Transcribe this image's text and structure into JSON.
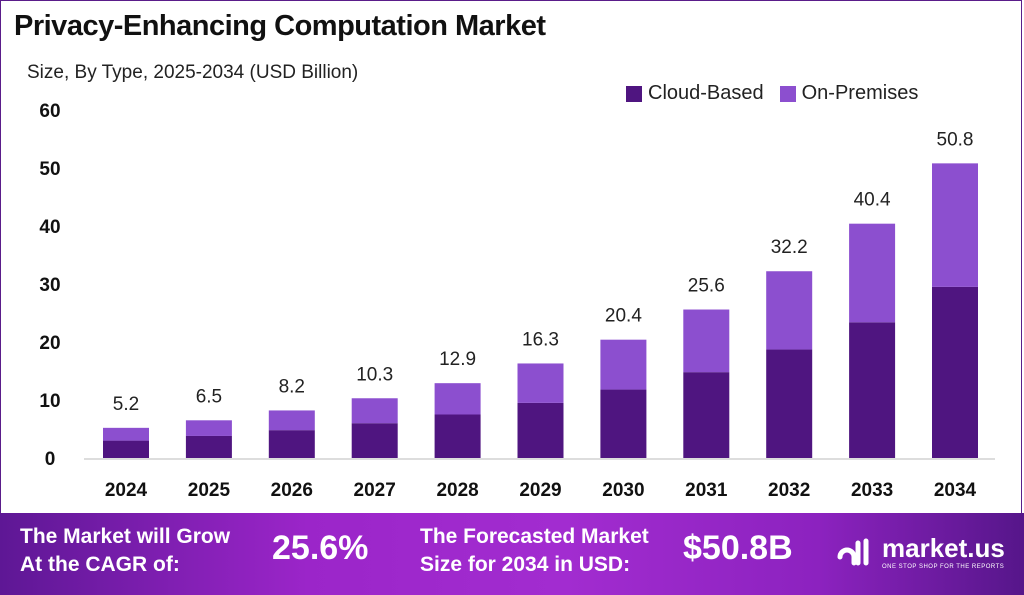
{
  "chart_data": {
    "type": "bar",
    "stacked": true,
    "title": "Privacy-Enhancing Computation Market",
    "subtitle": "Size, By Type, 2025-2034 (USD Billion)",
    "categories": [
      "2024",
      "2025",
      "2026",
      "2027",
      "2028",
      "2029",
      "2030",
      "2031",
      "2032",
      "2033",
      "2034"
    ],
    "series": [
      {
        "name": "Cloud-Based",
        "color": "#4f1580",
        "values": [
          3.0,
          3.8,
          4.8,
          6.0,
          7.5,
          9.5,
          11.8,
          14.8,
          18.7,
          23.4,
          29.5
        ]
      },
      {
        "name": "On-Premises",
        "color": "#8c4fcf",
        "values": [
          2.2,
          2.7,
          3.4,
          4.3,
          5.4,
          6.8,
          8.6,
          10.8,
          13.5,
          17.0,
          21.3
        ]
      }
    ],
    "totals": [
      "5.2",
      "6.5",
      "8.2",
      "10.3",
      "12.9",
      "16.3",
      "20.4",
      "25.6",
      "32.2",
      "40.4",
      "50.8"
    ],
    "ylim": [
      0,
      60
    ],
    "yticks": [
      "0",
      "10",
      "20",
      "30",
      "40",
      "50",
      "60"
    ],
    "grid": false,
    "legend": "top-right"
  },
  "banner": {
    "cagr_label_1": "The Market will Grow",
    "cagr_label_2": "At the CAGR of:",
    "cagr_value": "25.6%",
    "forecast_label_1": "The Forecasted Market",
    "forecast_label_2": "Size for 2034 in USD:",
    "forecast_value": "$50.8B",
    "logo_name": "market.us",
    "logo_tagline": "ONE STOP SHOP FOR THE REPORTS"
  }
}
